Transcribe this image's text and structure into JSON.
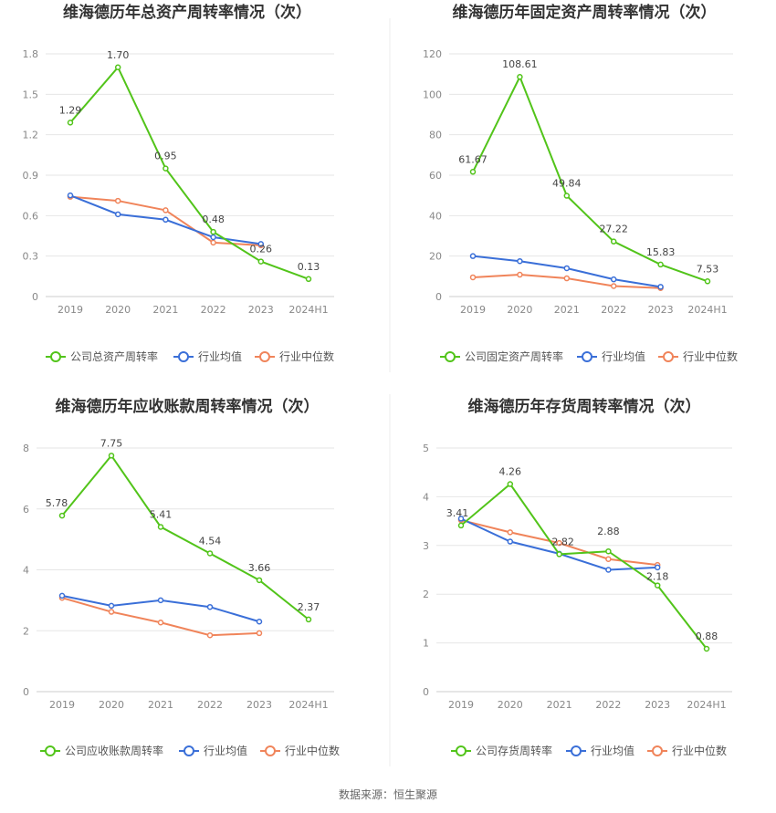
{
  "source_text": "数据来源：恒生聚源",
  "chart_data": [
    {
      "type": "line",
      "title": "维海德历年总资产周转率情况（次）",
      "categories": [
        "2019",
        "2020",
        "2021",
        "2022",
        "2023",
        "2024H1"
      ],
      "ylim": [
        0,
        1.8
      ],
      "yticks": [
        "0",
        "0.3",
        "0.6",
        "0.9",
        "1.2",
        "1.5",
        "1.8"
      ],
      "series": [
        {
          "name": "公司总资产周转率",
          "color": "#52c41a",
          "labeled": true,
          "values": [
            1.29,
            1.7,
            0.95,
            0.48,
            0.26,
            0.13
          ],
          "labels": [
            "1.29",
            "1.70",
            "0.95",
            "0.48",
            "0.26",
            "0.13"
          ]
        },
        {
          "name": "行业均值",
          "color": "#3a6fd8",
          "labeled": false,
          "values": [
            0.75,
            0.61,
            0.57,
            0.44,
            0.39,
            null
          ]
        },
        {
          "name": "行业中位数",
          "color": "#f0845a",
          "labeled": false,
          "values": [
            0.74,
            0.71,
            0.64,
            0.4,
            0.38,
            null
          ]
        }
      ]
    },
    {
      "type": "line",
      "title": "维海德历年固定资产周转率情况（次）",
      "categories": [
        "2019",
        "2020",
        "2021",
        "2022",
        "2023",
        "2024H1"
      ],
      "ylim": [
        0,
        120
      ],
      "yticks": [
        "0",
        "20",
        "40",
        "60",
        "80",
        "100",
        "120"
      ],
      "series": [
        {
          "name": "公司固定资产周转率",
          "color": "#52c41a",
          "labeled": true,
          "values": [
            61.67,
            108.61,
            49.84,
            27.22,
            15.83,
            7.53
          ],
          "labels": [
            "61.67",
            "108.61",
            "49.84",
            "27.22",
            "15.83",
            "7.53"
          ]
        },
        {
          "name": "行业均值",
          "color": "#3a6fd8",
          "labeled": false,
          "values": [
            20.0,
            17.5,
            14.0,
            8.5,
            4.8,
            null
          ]
        },
        {
          "name": "行业中位数",
          "color": "#f0845a",
          "labeled": false,
          "values": [
            9.5,
            10.8,
            9.0,
            5.2,
            4.2,
            null
          ]
        }
      ]
    },
    {
      "type": "line",
      "title": "维海德历年应收账款周转率情况（次）",
      "categories": [
        "2019",
        "2020",
        "2021",
        "2022",
        "2023",
        "2024H1"
      ],
      "ylim": [
        0,
        8
      ],
      "yticks": [
        "0",
        "2",
        "4",
        "6",
        "8"
      ],
      "series": [
        {
          "name": "公司应收账款周转率",
          "color": "#52c41a",
          "labeled": true,
          "values": [
            5.78,
            7.75,
            5.41,
            4.54,
            3.66,
            2.37
          ],
          "labels": [
            "5.78",
            "7.75",
            "5.41",
            "4.54",
            "3.66",
            "2.37"
          ]
        },
        {
          "name": "行业均值",
          "color": "#3a6fd8",
          "labeled": false,
          "values": [
            3.15,
            2.82,
            3.0,
            2.78,
            2.3,
            null
          ]
        },
        {
          "name": "行业中位数",
          "color": "#f0845a",
          "labeled": false,
          "values": [
            3.08,
            2.62,
            2.27,
            1.85,
            1.92,
            null
          ]
        }
      ]
    },
    {
      "type": "line",
      "title": "维海德历年存货周转率情况（次）",
      "categories": [
        "2019",
        "2020",
        "2021",
        "2022",
        "2023",
        "2024H1"
      ],
      "ylim": [
        0,
        5
      ],
      "yticks": [
        "0",
        "1",
        "2",
        "3",
        "4",
        "5"
      ],
      "series": [
        {
          "name": "公司存货周转率",
          "color": "#52c41a",
          "labeled": true,
          "values": [
            3.41,
            4.26,
            2.82,
            2.88,
            2.18,
            0.88
          ],
          "labels": [
            "3.41",
            "4.26",
            "2.82",
            "2.88",
            "2.18",
            "0.88"
          ]
        },
        {
          "name": "行业均值",
          "color": "#3a6fd8",
          "labeled": false,
          "values": [
            3.55,
            3.08,
            2.83,
            2.5,
            2.55,
            null
          ]
        },
        {
          "name": "行业中位数",
          "color": "#f0845a",
          "labeled": false,
          "values": [
            3.52,
            3.27,
            3.05,
            2.72,
            2.6,
            null
          ]
        }
      ]
    }
  ]
}
